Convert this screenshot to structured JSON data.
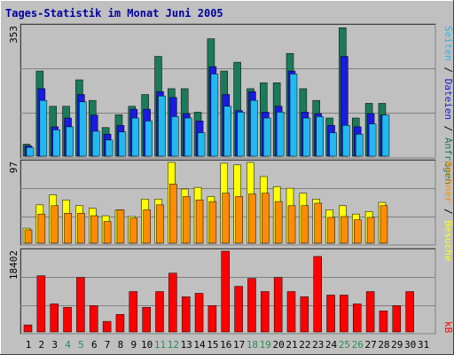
{
  "header": {
    "title": "Tages-Statistik im Monat Juni 2005"
  },
  "colors": {
    "page_bg": "#c0c0c0",
    "panel_bg": "#c0c0c0",
    "grid": "#808080",
    "title": "#0000a0",
    "hits": "#1b7a5a",
    "files": "#1a1ae0",
    "pages": "#22b8f0",
    "visits": "#ffff00",
    "sites": "#ff8c00",
    "kbytes": "#ff0000",
    "weekend_label": "#2e8b57",
    "day_label": "#000000"
  },
  "chart_data": [
    {
      "type": "bar",
      "title": "Tages-Statistik im Monat Juni 2005",
      "categories": [
        "1",
        "2",
        "3",
        "4",
        "5",
        "6",
        "7",
        "8",
        "9",
        "10",
        "11",
        "12",
        "13",
        "14",
        "15",
        "16",
        "17",
        "18",
        "19",
        "20",
        "21",
        "22",
        "23",
        "24",
        "25",
        "26",
        "27",
        "28",
        "29",
        "30",
        "31"
      ],
      "weekend_days": [
        "4",
        "5",
        "11",
        "12",
        "18",
        "19",
        "25",
        "26"
      ],
      "ylabel_max": "353",
      "ylim": [
        0,
        353
      ],
      "legend": [
        {
          "label": "Anfragen",
          "color": "#1b7a5a"
        },
        {
          "label": "Dateien",
          "color": "#1a1ae0"
        },
        {
          "label": "Seiten",
          "color": "#22b8f0"
        }
      ],
      "series": [
        {
          "name": "Anfragen",
          "values": [
            33,
            232,
            136,
            136,
            208,
            152,
            78,
            113,
            136,
            168,
            272,
            184,
            184,
            120,
            320,
            232,
            256,
            184,
            200,
            200,
            280,
            184,
            152,
            104,
            350,
            104,
            144,
            144,
            0,
            0,
            0
          ]
        },
        {
          "name": "Dateien",
          "values": [
            28,
            184,
            80,
            104,
            168,
            112,
            60,
            84,
            128,
            128,
            176,
            160,
            116,
            96,
            244,
            168,
            124,
            176,
            120,
            136,
            232,
            120,
            116,
            84,
            272,
            80,
            116,
            112,
            0,
            0,
            0
          ]
        },
        {
          "name": "Seiten",
          "values": [
            24,
            152,
            72,
            80,
            148,
            68,
            44,
            66,
            104,
            96,
            164,
            108,
            104,
            64,
            224,
            136,
            120,
            152,
            104,
            120,
            224,
            104,
            108,
            64,
            84,
            60,
            88,
            112,
            0,
            0,
            0
          ]
        }
      ]
    },
    {
      "type": "bar",
      "ylabel_max": "97",
      "ylim": [
        0,
        97
      ],
      "legend": [
        {
          "label": "Besuche",
          "color": "#ffff00"
        },
        {
          "label": "Rechner",
          "color": "#ff8c00"
        }
      ],
      "series": [
        {
          "name": "Besuche",
          "values": [
            18,
            46,
            58,
            52,
            45,
            42,
            33,
            40,
            32,
            53,
            53,
            97,
            65,
            67,
            56,
            96,
            94,
            97,
            80,
            68,
            66,
            60,
            53,
            40,
            45,
            35,
            38,
            49,
            0,
            0,
            0
          ]
        },
        {
          "name": "Rechner",
          "values": [
            16,
            35,
            45,
            36,
            36,
            33,
            26,
            40,
            30,
            40,
            46,
            71,
            56,
            52,
            50,
            60,
            56,
            59,
            60,
            50,
            45,
            45,
            48,
            31,
            32,
            28,
            31,
            45,
            0,
            0,
            0
          ]
        }
      ]
    },
    {
      "type": "bar",
      "ylabel_max": "18402",
      "ylim": [
        0,
        18402
      ],
      "legend": [
        {
          "label": "kB",
          "color": "#ff0000"
        }
      ],
      "series": [
        {
          "name": "kB",
          "values": [
            1600,
            12800,
            6400,
            5600,
            12400,
            6000,
            2400,
            4000,
            9200,
            5600,
            9200,
            13400,
            8000,
            8800,
            6000,
            18400,
            10400,
            12200,
            9200,
            12400,
            9200,
            8000,
            17200,
            8400,
            8400,
            6400,
            9200,
            4800,
            6000,
            9200,
            0
          ]
        }
      ]
    }
  ]
}
